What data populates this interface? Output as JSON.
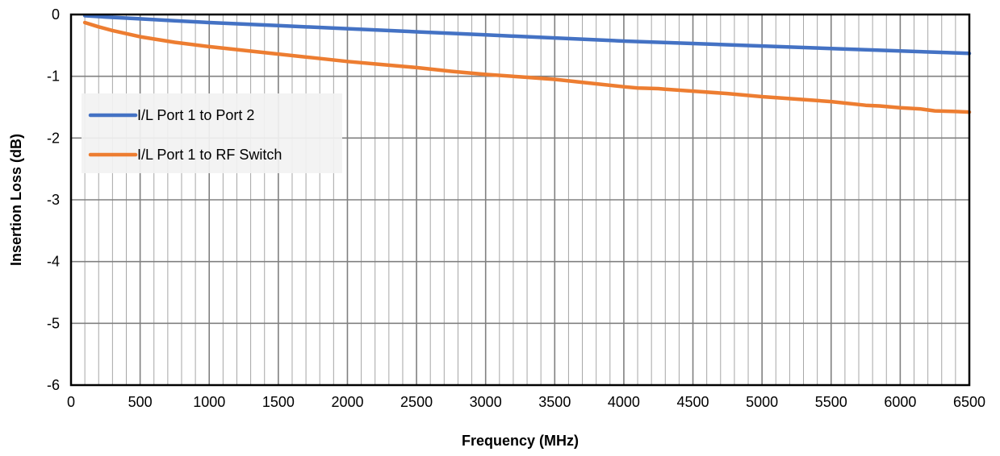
{
  "chart_data": {
    "type": "line",
    "title": "",
    "xlabel": "Frequency (MHz)",
    "ylabel": "Insertion Loss (dB)",
    "xlim": [
      0,
      6500
    ],
    "ylim": [
      -6,
      0
    ],
    "x_ticks": [
      0,
      500,
      1000,
      1500,
      2000,
      2500,
      3000,
      3500,
      4000,
      4500,
      5000,
      5500,
      6000,
      6500
    ],
    "y_ticks": [
      0,
      -1,
      -2,
      -3,
      -4,
      -5,
      -6
    ],
    "x_minor_step": 100,
    "grid": true,
    "legend_position": "center-left",
    "series": [
      {
        "name": "I/L Port 1 to Port 2",
        "color": "#4472C4",
        "x": [
          100,
          250,
          500,
          750,
          1000,
          1500,
          2000,
          2500,
          3000,
          3500,
          4000,
          4500,
          5000,
          5500,
          6000,
          6250,
          6500
        ],
        "y": [
          -0.02,
          -0.04,
          -0.07,
          -0.1,
          -0.13,
          -0.18,
          -0.23,
          -0.28,
          -0.33,
          -0.38,
          -0.43,
          -0.47,
          -0.51,
          -0.55,
          -0.59,
          -0.61,
          -0.63
        ]
      },
      {
        "name": "I/L Port 1 to RF Switch",
        "color": "#ED7D31",
        "x": [
          100,
          200,
          300,
          500,
          750,
          1000,
          1250,
          1500,
          1750,
          2000,
          2250,
          2500,
          2750,
          3000,
          3250,
          3500,
          3750,
          4000,
          4100,
          4250,
          4300,
          4500,
          4750,
          5000,
          5250,
          5500,
          5750,
          5850,
          6000,
          6150,
          6250,
          6400,
          6500
        ],
        "y": [
          -0.13,
          -0.2,
          -0.26,
          -0.36,
          -0.45,
          -0.52,
          -0.58,
          -0.64,
          -0.7,
          -0.76,
          -0.81,
          -0.86,
          -0.92,
          -0.97,
          -1.01,
          -1.05,
          -1.11,
          -1.17,
          -1.19,
          -1.2,
          -1.21,
          -1.24,
          -1.28,
          -1.33,
          -1.37,
          -1.41,
          -1.47,
          -1.48,
          -1.51,
          -1.53,
          -1.56,
          -1.57,
          -1.58
        ]
      }
    ]
  }
}
